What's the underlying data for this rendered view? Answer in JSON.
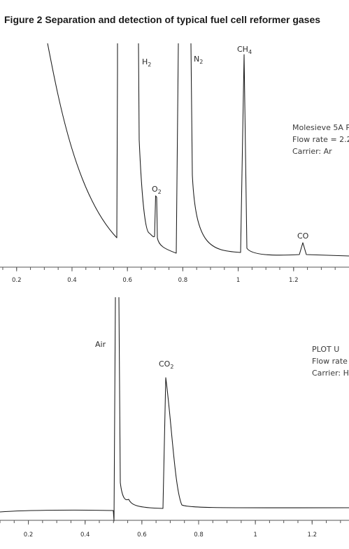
{
  "figure": {
    "title": "Figure 2  Separation and detection of typical fuel cell reformer gases"
  },
  "chart_data": [
    {
      "type": "line",
      "x_tick_labels": [
        "0.2",
        "0.4",
        "0.6",
        "0.8",
        "1",
        "1.2"
      ],
      "x_ticks": [
        0.2,
        0.4,
        0.6,
        0.8,
        1.0,
        1.2
      ],
      "xlim": [
        0.14,
        1.4
      ],
      "grid": false,
      "column_annotation": {
        "lines": [
          "Molesieve 5A P",
          "Flow rate = 2.2",
          "Carrier:  Ar"
        ]
      },
      "peaks": [
        {
          "label": "H",
          "sub": "2",
          "x": 0.6
        },
        {
          "label": "O",
          "sub": "2",
          "x": 0.69
        },
        {
          "label": "N",
          "sub": "2",
          "x": 0.79
        },
        {
          "label": "CH",
          "sub": "4",
          "x": 1.0
        },
        {
          "label": "CO",
          "sub": "",
          "x": 1.21
        }
      ]
    },
    {
      "type": "line",
      "x_tick_labels": [
        "0.2",
        "0.4",
        "0.6",
        "0.8",
        "1",
        "1.2"
      ],
      "x_ticks": [
        0.2,
        0.4,
        0.6,
        0.8,
        1.0,
        1.2
      ],
      "xlim": [
        0.1,
        1.33
      ],
      "grid": false,
      "column_annotation": {
        "lines": [
          "PLOT U",
          "Flow rate",
          "Carrier:  H"
        ]
      },
      "peaks": [
        {
          "label": "Air",
          "sub": "",
          "x": 0.52
        },
        {
          "label": "CO",
          "sub": "2",
          "x": 0.69
        }
      ]
    }
  ]
}
